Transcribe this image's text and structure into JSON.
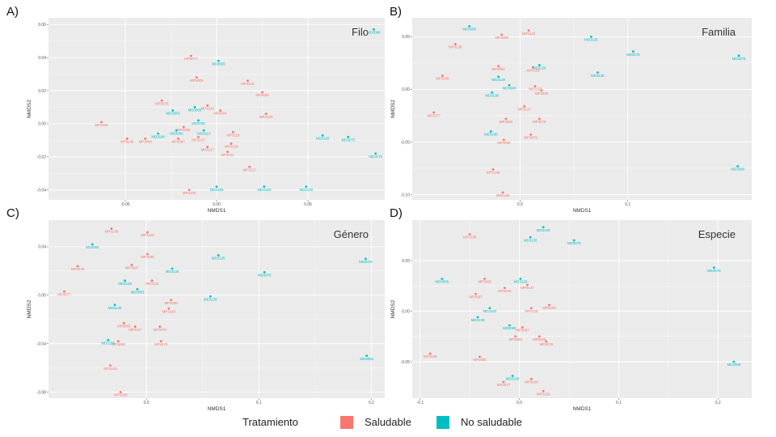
{
  "colors": {
    "saludable": "#F8766D",
    "no_saludable": "#00BFC4",
    "panel_bg": "#EBEBEB",
    "grid": "#FFFFFF"
  },
  "legend": {
    "title": "Tratamiento",
    "items": [
      {
        "label": "Saludable",
        "color": "#F8766D"
      },
      {
        "label": "No saludable",
        "color": "#00BFC4"
      }
    ]
  },
  "chart_data": [
    {
      "type": "scatter",
      "panel": "A)",
      "title": "Filo",
      "xlabel": "NMDS1",
      "ylabel": "NMDS2",
      "xlim": [
        -0.092,
        0.092
      ],
      "ylim": [
        -0.046,
        0.064
      ],
      "xticks": [
        -0.05,
        0.0,
        0.05
      ],
      "yticks": [
        -0.04,
        -0.02,
        0.0,
        0.02,
        0.04,
        0.06
      ],
      "tick_labels_x": [
        "-0.05",
        "0.00",
        "0.05"
      ],
      "tick_labels_y": [
        "-0.04",
        "-0.02",
        "0.00",
        "0.02",
        "0.04",
        "0.06"
      ],
      "series": [
        {
          "name": "Saludable",
          "color": "#F8766D",
          "points": [
            {
              "x": -0.063,
              "y": 0.001,
              "label": "MP3150"
            },
            {
              "x": -0.049,
              "y": -0.009,
              "label": "MP3148"
            },
            {
              "x": -0.039,
              "y": -0.009,
              "label": "MP3090"
            },
            {
              "x": -0.03,
              "y": 0.014,
              "label": "MP3078"
            },
            {
              "x": -0.021,
              "y": -0.009,
              "label": "MP3097"
            },
            {
              "x": -0.014,
              "y": 0.041,
              "label": "MP3077"
            },
            {
              "x": -0.011,
              "y": 0.028,
              "label": "MP3009"
            },
            {
              "x": -0.005,
              "y": 0.011,
              "label": "MP3110"
            },
            {
              "x": 0.017,
              "y": 0.026,
              "label": "MP3118"
            },
            {
              "x": 0.025,
              "y": 0.019,
              "label": "MP3059"
            },
            {
              "x": 0.027,
              "y": 0.006,
              "label": "MP3133"
            },
            {
              "x": -0.01,
              "y": -0.008,
              "label": "MP3137"
            },
            {
              "x": -0.005,
              "y": -0.014,
              "label": "MP3117"
            },
            {
              "x": 0.006,
              "y": -0.017,
              "label": "MP3121"
            },
            {
              "x": 0.018,
              "y": -0.026,
              "label": "MP3127"
            },
            {
              "x": -0.015,
              "y": -0.04,
              "label": "MP3100"
            },
            {
              "x": 0.002,
              "y": 0.008,
              "label": "MP3004"
            },
            {
              "x": 0.009,
              "y": -0.005,
              "label": "MP3119"
            },
            {
              "x": 0.008,
              "y": -0.012,
              "label": "MP3130"
            },
            {
              "x": -0.018,
              "y": -0.002,
              "label": "MP3008"
            }
          ]
        },
        {
          "name": "No saludable",
          "color": "#00BFC4",
          "points": [
            {
              "x": 0.001,
              "y": 0.038,
              "label": "MD3065"
            },
            {
              "x": -0.024,
              "y": 0.008,
              "label": "MD3083"
            },
            {
              "x": -0.032,
              "y": -0.006,
              "label": "MD3180"
            },
            {
              "x": -0.022,
              "y": -0.004,
              "label": "MD3084"
            },
            {
              "x": -0.01,
              "y": 0.002,
              "label": "MD3035"
            },
            {
              "x": -0.007,
              "y": -0.004,
              "label": "MD3113"
            },
            {
              "x": 0.058,
              "y": -0.007,
              "label": "MD3125"
            },
            {
              "x": 0.072,
              "y": -0.008,
              "label": "MD3075"
            },
            {
              "x": 0.087,
              "y": -0.018,
              "label": "MD3076"
            },
            {
              "x": 0.086,
              "y": 0.057,
              "label": "MD3086"
            },
            {
              "x": 0.0,
              "y": -0.038,
              "label": "MD3196"
            },
            {
              "x": 0.026,
              "y": -0.038,
              "label": "MD3129"
            },
            {
              "x": 0.049,
              "y": -0.038,
              "label": "MD3130"
            },
            {
              "x": -0.012,
              "y": 0.01,
              "label": "MD3085"
            }
          ]
        }
      ]
    },
    {
      "type": "scatter",
      "panel": "B)",
      "title": "Familia",
      "xlabel": "NMDS1",
      "ylabel": "NMDS2",
      "xlim": [
        -0.1,
        0.215
      ],
      "ylim": [
        -0.105,
        0.068
      ],
      "xticks": [
        0.0,
        0.1
      ],
      "yticks": [
        -0.1,
        -0.05,
        0.0,
        0.05
      ],
      "tick_labels_x": [
        "0.0",
        "0.1"
      ],
      "tick_labels_y": [
        "-0.10",
        "-0.05",
        "0.00",
        "0.05"
      ],
      "series": [
        {
          "name": "Saludable",
          "color": "#F8766D",
          "points": [
            {
              "x": -0.06,
              "y": 0.043,
              "label": "MP3139"
            },
            {
              "x": -0.072,
              "y": 0.013,
              "label": "MP3100"
            },
            {
              "x": -0.08,
              "y": -0.022,
              "label": "MP3077"
            },
            {
              "x": -0.017,
              "y": 0.052,
              "label": "MP3009"
            },
            {
              "x": 0.008,
              "y": 0.056,
              "label": "MP3120"
            },
            {
              "x": -0.02,
              "y": 0.022,
              "label": "MP3097"
            },
            {
              "x": 0.012,
              "y": 0.021,
              "label": "MP3118"
            },
            {
              "x": 0.01,
              "y": -0.043,
              "label": "MP3078"
            },
            {
              "x": -0.015,
              "y": -0.048,
              "label": "MP3069"
            },
            {
              "x": -0.025,
              "y": -0.076,
              "label": "MP3148"
            },
            {
              "x": -0.016,
              "y": -0.098,
              "label": "MP3130"
            },
            {
              "x": 0.018,
              "y": -0.028,
              "label": "MP3078"
            },
            {
              "x": 0.02,
              "y": -0.001,
              "label": "MP3098"
            },
            {
              "x": 0.004,
              "y": -0.016,
              "label": "MP3127"
            },
            {
              "x": -0.013,
              "y": -0.028,
              "label": "MP3060"
            },
            {
              "x": 0.014,
              "y": 0.003,
              "label": "MP3130"
            }
          ]
        },
        {
          "name": "No saludable",
          "color": "#00BFC4",
          "points": [
            {
              "x": -0.047,
              "y": 0.06,
              "label": "MD3065"
            },
            {
              "x": 0.066,
              "y": 0.05,
              "label": "MD3125"
            },
            {
              "x": 0.105,
              "y": 0.036,
              "label": "MD3075"
            },
            {
              "x": 0.203,
              "y": 0.032,
              "label": "MD3076"
            },
            {
              "x": 0.072,
              "y": 0.016,
              "label": "MD3135"
            },
            {
              "x": 0.202,
              "y": -0.073,
              "label": "MD3086"
            },
            {
              "x": 0.018,
              "y": 0.023,
              "label": "MD3126"
            },
            {
              "x": -0.027,
              "y": -0.04,
              "label": "MD3196"
            },
            {
              "x": -0.02,
              "y": 0.012,
              "label": "MD3128"
            },
            {
              "x": -0.026,
              "y": -0.003,
              "label": "MD3130"
            },
            {
              "x": -0.01,
              "y": 0.004,
              "label": "MD3083"
            }
          ]
        }
      ]
    },
    {
      "type": "scatter",
      "panel": "C)",
      "title": "Género",
      "xlabel": "NMDS1",
      "ylabel": "NMDS2",
      "xlim": [
        -0.087,
        0.212
      ],
      "ylim": [
        -0.085,
        0.062
      ],
      "xticks": [
        0.0,
        0.1,
        0.2
      ],
      "yticks": [
        -0.08,
        -0.04,
        0.0,
        0.04
      ],
      "tick_labels_x": [
        "0.0",
        "0.1",
        "0.2"
      ],
      "tick_labels_y": [
        "-0.08",
        "-0.04",
        "0.00",
        "0.04"
      ],
      "series": [
        {
          "name": "Saludable",
          "color": "#F8766D",
          "points": [
            {
              "x": -0.031,
              "y": 0.055,
              "label": "MP3138"
            },
            {
              "x": 0.001,
              "y": 0.052,
              "label": "MP3120"
            },
            {
              "x": -0.061,
              "y": 0.024,
              "label": "MP3139"
            },
            {
              "x": -0.073,
              "y": 0.003,
              "label": "MP3077"
            },
            {
              "x": 0.001,
              "y": 0.034,
              "label": "MP3009"
            },
            {
              "x": -0.013,
              "y": 0.025,
              "label": "MP3097"
            },
            {
              "x": 0.005,
              "y": 0.012,
              "label": "MP3118"
            },
            {
              "x": -0.02,
              "y": -0.023,
              "label": "MP3069"
            },
            {
              "x": 0.013,
              "y": -0.038,
              "label": "MP3078"
            },
            {
              "x": -0.032,
              "y": -0.058,
              "label": "MP3148"
            },
            {
              "x": -0.023,
              "y": -0.08,
              "label": "MP3130"
            },
            {
              "x": 0.012,
              "y": -0.026,
              "label": "MP3078"
            },
            {
              "x": -0.01,
              "y": -0.026,
              "label": "MP3127"
            },
            {
              "x": 0.022,
              "y": -0.004,
              "label": "MP3090"
            },
            {
              "x": 0.02,
              "y": -0.011,
              "label": "MP3130"
            },
            {
              "x": -0.025,
              "y": -0.038,
              "label": "MP3060"
            }
          ]
        },
        {
          "name": "No saludable",
          "color": "#00BFC4",
          "points": [
            {
              "x": -0.048,
              "y": 0.042,
              "label": "MD3065"
            },
            {
              "x": 0.064,
              "y": 0.033,
              "label": "MD3125"
            },
            {
              "x": 0.105,
              "y": 0.019,
              "label": "MD3075"
            },
            {
              "x": 0.195,
              "y": 0.03,
              "label": "MD3076"
            },
            {
              "x": 0.057,
              "y": -0.001,
              "label": "MD3135"
            },
            {
              "x": 0.196,
              "y": -0.05,
              "label": "MD3086"
            },
            {
              "x": 0.023,
              "y": 0.022,
              "label": "MD3126"
            },
            {
              "x": -0.034,
              "y": -0.037,
              "label": "MD3196"
            },
            {
              "x": -0.019,
              "y": 0.012,
              "label": "MD3128"
            },
            {
              "x": -0.028,
              "y": -0.008,
              "label": "MD3130"
            },
            {
              "x": -0.008,
              "y": 0.005,
              "label": "MD3083"
            }
          ]
        }
      ]
    },
    {
      "type": "scatter",
      "panel": "D)",
      "title": "Especie",
      "xlabel": "NMDS1",
      "ylabel": "NMDS2",
      "xlim": [
        -0.108,
        0.234
      ],
      "ylim": [
        -0.086,
        0.09
      ],
      "xticks": [
        -0.1,
        0.0,
        0.1,
        0.2
      ],
      "yticks": [
        -0.05,
        0.0,
        0.05
      ],
      "tick_labels_x": [
        "-0.1",
        "0.0",
        "0.1",
        "0.2"
      ],
      "tick_labels_y": [
        "-0.05",
        "0.00",
        "0.05"
      ],
      "series": [
        {
          "name": "Saludable",
          "color": "#F8766D",
          "points": [
            {
              "x": -0.05,
              "y": 0.076,
              "label": "MP3138"
            },
            {
              "x": -0.035,
              "y": 0.032,
              "label": "MP3009"
            },
            {
              "x": 0.008,
              "y": 0.026,
              "label": "MP3127"
            },
            {
              "x": -0.015,
              "y": 0.023,
              "label": "MP3118"
            },
            {
              "x": -0.044,
              "y": 0.017,
              "label": "MP3097"
            },
            {
              "x": 0.03,
              "y": 0.006,
              "label": "MP3100"
            },
            {
              "x": -0.09,
              "y": -0.042,
              "label": "MP3139"
            },
            {
              "x": -0.04,
              "y": -0.045,
              "label": "MP3060"
            },
            {
              "x": -0.016,
              "y": -0.07,
              "label": "MP3077"
            },
            {
              "x": 0.012,
              "y": -0.067,
              "label": "MP3148"
            },
            {
              "x": 0.024,
              "y": -0.079,
              "label": "MP3130"
            },
            {
              "x": 0.02,
              "y": -0.025,
              "label": "MP3069"
            },
            {
              "x": 0.027,
              "y": -0.03,
              "label": "MP3078"
            },
            {
              "x": -0.004,
              "y": -0.025,
              "label": "MP3060"
            },
            {
              "x": 0.012,
              "y": 0.003,
              "label": "MP3116"
            },
            {
              "x": 0.003,
              "y": -0.016,
              "label": "MP3087"
            }
          ]
        },
        {
          "name": "No saludable",
          "color": "#00BFC4",
          "points": [
            {
              "x": 0.024,
              "y": 0.083,
              "label": "MD3125"
            },
            {
              "x": 0.011,
              "y": 0.073,
              "label": "MD3135"
            },
            {
              "x": 0.055,
              "y": 0.07,
              "label": "MD3075"
            },
            {
              "x": -0.078,
              "y": 0.032,
              "label": "MD3065"
            },
            {
              "x": 0.196,
              "y": 0.043,
              "label": "MD3076"
            },
            {
              "x": 0.001,
              "y": 0.032,
              "label": "MD3128"
            },
            {
              "x": 0.216,
              "y": -0.05,
              "label": "MD3086"
            },
            {
              "x": -0.007,
              "y": -0.064,
              "label": "MD3196"
            },
            {
              "x": -0.042,
              "y": -0.006,
              "label": "MD3130"
            },
            {
              "x": -0.03,
              "y": 0.003,
              "label": "MD3183"
            },
            {
              "x": -0.01,
              "y": -0.014,
              "label": "MD3083"
            }
          ]
        }
      ]
    }
  ]
}
